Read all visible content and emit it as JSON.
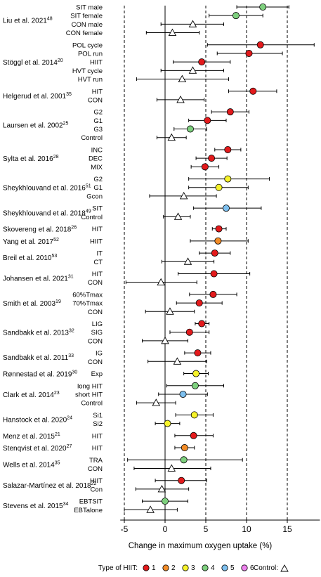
{
  "chart_data": {
    "type": "scatter",
    "subtype": "forest-plot",
    "xlabel": "Change in maximum  oxygen uptake (%)",
    "xlim": [
      -5.5,
      19
    ],
    "xticks": [
      -5,
      0,
      5,
      10,
      15
    ],
    "reference_lines": [
      -5,
      5,
      10,
      15
    ],
    "zero_line": 0,
    "grid": false,
    "legend": {
      "position": "bottom",
      "title": "Type of HIIT:",
      "control_label": "Control:",
      "items": [
        {
          "label": "1",
          "color": "#e31a1c"
        },
        {
          "label": "2",
          "color": "#f28c28"
        },
        {
          "label": "3",
          "color": "#f7f32a"
        },
        {
          "label": "4",
          "color": "#7ed07e"
        },
        {
          "label": "5",
          "color": "#7ec0ef"
        },
        {
          "label": "6",
          "color": "#ee82ee"
        }
      ]
    },
    "studies": [
      {
        "study": "Liu et al. 2021",
        "ref": "48",
        "arms": [
          {
            "label": "SIT male",
            "type": "4",
            "x": 12.0,
            "lo": 8.8,
            "hi": 15.2
          },
          {
            "label": "SIT female",
            "type": "4",
            "x": 8.7,
            "lo": 5.4,
            "hi": 12.0
          },
          {
            "label": "CON male",
            "type": "control",
            "x": 3.4,
            "lo": -0.5,
            "hi": 7.2
          },
          {
            "label": "CON female",
            "type": "control",
            "x": 0.9,
            "lo": -2.3,
            "hi": 4.2
          }
        ]
      },
      {
        "study": "Stöggl et al. 2014",
        "ref": "20",
        "arms": [
          {
            "label": "POL cycle",
            "type": "1",
            "x": 11.7,
            "lo": 5.2,
            "hi": 18.3
          },
          {
            "label": "POL run",
            "type": "1",
            "x": 10.3,
            "lo": 6.4,
            "hi": 14.4
          },
          {
            "label": "HIIT",
            "type": "1",
            "x": 4.5,
            "lo": 1.0,
            "hi": 8.0
          },
          {
            "label": "HVT cycle",
            "type": "control",
            "x": 3.4,
            "lo": -0.5,
            "hi": 7.2
          },
          {
            "label": "HVT run",
            "type": "control",
            "x": 2.1,
            "lo": -3.5,
            "hi": 7.8
          }
        ]
      },
      {
        "study": "Helgerud et al. 2001",
        "ref": "35",
        "arms": [
          {
            "label": "HIT",
            "type": "1",
            "x": 10.8,
            "lo": 7.8,
            "hi": 13.7
          },
          {
            "label": "CON",
            "type": "control",
            "x": 1.9,
            "lo": -1.0,
            "hi": 4.8
          }
        ]
      },
      {
        "study": "Laursen et al. 2002",
        "ref": "25",
        "arms": [
          {
            "label": "G2",
            "type": "1",
            "x": 8.0,
            "lo": 5.7,
            "hi": 10.3
          },
          {
            "label": "G1",
            "type": "1",
            "x": 5.2,
            "lo": 2.9,
            "hi": 7.5
          },
          {
            "label": "G3",
            "type": "4",
            "x": 3.1,
            "lo": 1.1,
            "hi": 5.1
          },
          {
            "label": "Control",
            "type": "control",
            "x": 0.8,
            "lo": -1.0,
            "hi": 2.6
          }
        ]
      },
      {
        "study": "Sylta et al. 2016",
        "ref": "28",
        "arms": [
          {
            "label": "INC",
            "type": "1",
            "x": 7.7,
            "lo": 6.1,
            "hi": 9.3
          },
          {
            "label": "DEC",
            "type": "1",
            "x": 5.7,
            "lo": 3.8,
            "hi": 7.6
          },
          {
            "label": "MIX",
            "type": "1",
            "x": 4.9,
            "lo": 3.2,
            "hi": 6.6
          }
        ]
      },
      {
        "study": "Sheykhlouvand  et al. 2016",
        "ref": "51",
        "arms": [
          {
            "label": "G2",
            "type": "3",
            "x": 7.7,
            "lo": 2.9,
            "hi": 12.8
          },
          {
            "label": "G1",
            "type": "3",
            "x": 6.6,
            "lo": 2.9,
            "hi": 10.2
          },
          {
            "label": "Gcon",
            "type": "control",
            "x": 2.3,
            "lo": -1.9,
            "hi": 6.3
          }
        ]
      },
      {
        "study": "Sheykhlouvand  et al. 2018",
        "ref": "49",
        "arms": [
          {
            "label": "SIT",
            "type": "5",
            "x": 7.5,
            "lo": 3.5,
            "hi": 11.8
          },
          {
            "label": "Control",
            "type": "control",
            "x": 1.6,
            "lo": -0.2,
            "hi": 3.1
          }
        ]
      },
      {
        "study": "Skovereng et al. 2018",
        "ref": "26",
        "arms": [
          {
            "label": "HIT",
            "type": "1",
            "x": 6.6,
            "lo": 5.8,
            "hi": 7.5
          }
        ]
      },
      {
        "study": "Yang et al. 2017",
        "ref": "52",
        "arms": [
          {
            "label": "HIIT",
            "type": "2",
            "x": 6.5,
            "lo": 3.1,
            "hi": 10.2
          }
        ]
      },
      {
        "study": "Breil et al. 2010",
        "ref": "53",
        "arms": [
          {
            "label": "IT",
            "type": "1",
            "x": 6.1,
            "lo": 4.2,
            "hi": 8.0
          },
          {
            "label": "CT",
            "type": "control",
            "x": 2.8,
            "lo": -0.4,
            "hi": 6.0
          }
        ]
      },
      {
        "study": "Johansen et al. 2021",
        "ref": "31",
        "arms": [
          {
            "label": "HIT",
            "type": "1",
            "x": 6.0,
            "lo": 1.6,
            "hi": 10.4
          },
          {
            "label": "CON",
            "type": "control",
            "x": -0.5,
            "lo": -4.8,
            "hi": 3.9
          }
        ]
      },
      {
        "study": "Smith et al. 2003",
        "ref": "19",
        "arms": [
          {
            "label": "60%Tmax",
            "type": "1",
            "x": 5.9,
            "lo": 3.0,
            "hi": 8.8
          },
          {
            "label": "70%Tmax",
            "type": "1",
            "x": 4.2,
            "lo": 1.4,
            "hi": 7.0
          },
          {
            "label": "CON",
            "type": "control",
            "x": 0.6,
            "lo": -2.4,
            "hi": 3.6
          }
        ]
      },
      {
        "study": "Sandbakk et al. 2013",
        "ref": "32",
        "arms": [
          {
            "label": "LIG",
            "type": "1",
            "x": 4.5,
            "lo": 3.7,
            "hi": 5.4
          },
          {
            "label": "SIG",
            "type": "1",
            "x": 3.0,
            "lo": 0.6,
            "hi": 5.4
          },
          {
            "label": "CON",
            "type": "control",
            "x": 0.0,
            "lo": -2.8,
            "hi": 2.8
          }
        ]
      },
      {
        "study": "Sandbakk et al. 2011",
        "ref": "33",
        "arms": [
          {
            "label": "IG",
            "type": "1",
            "x": 4.0,
            "lo": 2.4,
            "hi": 5.6
          },
          {
            "label": "CON",
            "type": "control",
            "x": 1.5,
            "lo": -2.1,
            "hi": 5.1
          }
        ]
      },
      {
        "study": "Rønnestad et al. 2019",
        "ref": "30",
        "arms": [
          {
            "label": "Exp",
            "type": "3",
            "x": 3.8,
            "lo": 2.3,
            "hi": 5.3
          }
        ]
      },
      {
        "study": "Clark et al. 2014",
        "ref": "23",
        "arms": [
          {
            "label": "long HIT",
            "type": "4",
            "x": 3.7,
            "lo": 0.2,
            "hi": 7.2
          },
          {
            "label": "short HIT",
            "type": "5",
            "x": 2.2,
            "lo": -0.8,
            "hi": 5.2
          },
          {
            "label": "Control",
            "type": "control",
            "x": -1.1,
            "lo": -3.5,
            "hi": 1.3
          }
        ]
      },
      {
        "study": "Hanstock et al. 2020",
        "ref": "24",
        "arms": [
          {
            "label": "Si1",
            "type": "3",
            "x": 3.6,
            "lo": 1.3,
            "hi": 5.9
          },
          {
            "label": "Si2",
            "type": "3",
            "x": 0.3,
            "lo": -1.2,
            "hi": 1.8
          }
        ]
      },
      {
        "study": "Menz et al. 2015",
        "ref": "21",
        "arms": [
          {
            "label": "HIT",
            "type": "1",
            "x": 3.5,
            "lo": 1.2,
            "hi": 5.9
          }
        ]
      },
      {
        "study": "Stenqvist et al. 2020",
        "ref": "27",
        "arms": [
          {
            "label": "HIT",
            "type": "2",
            "x": 2.4,
            "lo": 1.2,
            "hi": 3.6
          }
        ]
      },
      {
        "study": "Wells et al. 2014",
        "ref": "35",
        "arms": [
          {
            "label": "TRA",
            "type": "4",
            "x": 2.3,
            "lo": -4.6,
            "hi": 9.5
          },
          {
            "label": "CON",
            "type": "control",
            "x": 0.8,
            "lo": -3.8,
            "hi": 5.6
          }
        ]
      },
      {
        "study": "Salazar-Martínez  et al. 2018",
        "ref": "22",
        "arms": [
          {
            "label": "HIIT",
            "type": "1",
            "x": 2.0,
            "lo": -1.2,
            "hi": 5.1
          },
          {
            "label": "Con",
            "type": "control",
            "x": -0.4,
            "lo": -3.6,
            "hi": 2.9
          }
        ]
      },
      {
        "study": "Stevens et al. 2015",
        "ref": "34",
        "arms": [
          {
            "label": "EBTSIT",
            "type": "4",
            "x": 0.0,
            "lo": -2.8,
            "hi": 2.8
          },
          {
            "label": "EBTalone",
            "type": "control",
            "x": -1.8,
            "lo": -5.0,
            "hi": 1.5
          }
        ]
      }
    ]
  }
}
